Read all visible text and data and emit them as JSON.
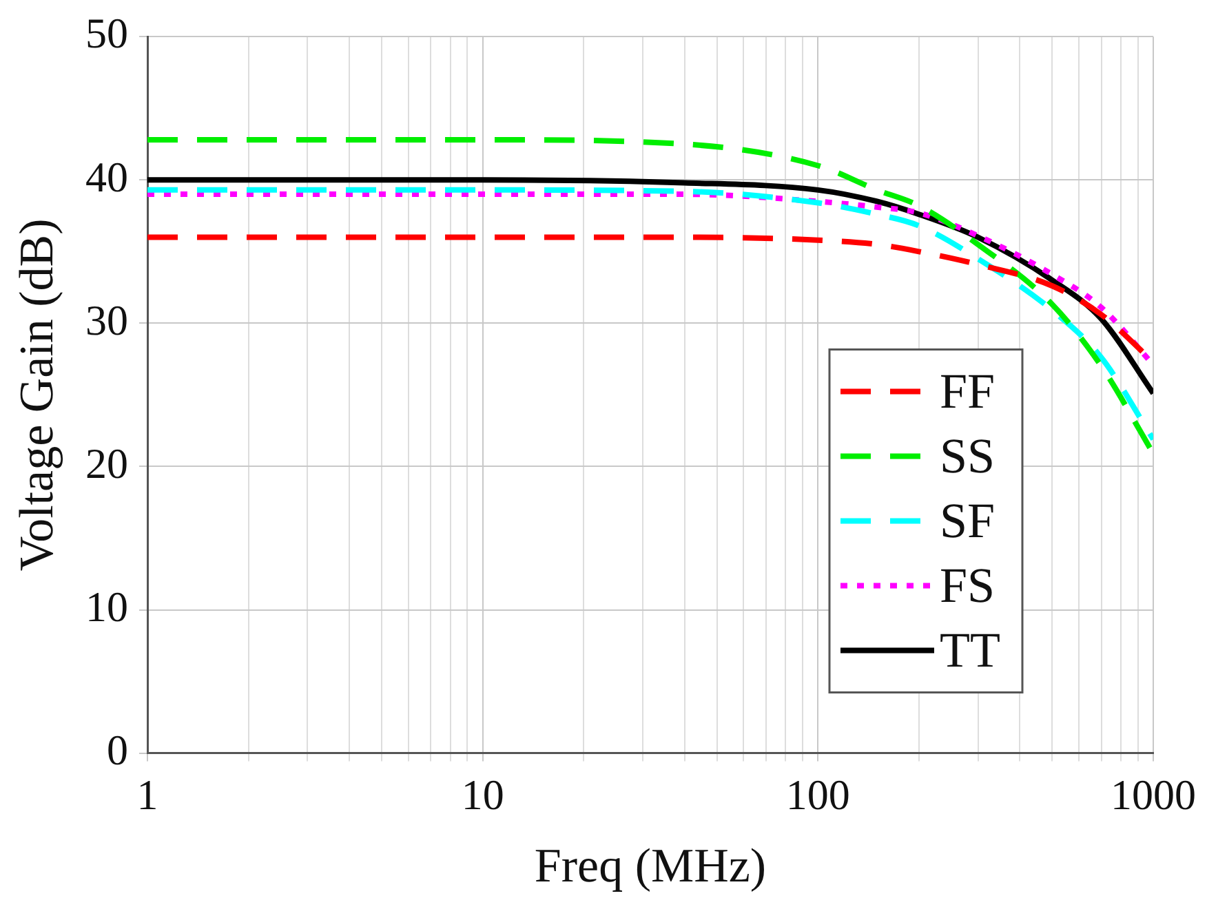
{
  "chart_data": {
    "type": "line",
    "xlabel": "Freq (MHz)",
    "ylabel": "Voltage Gain (dB)",
    "log": "x",
    "grid": true,
    "legend": "bottom right",
    "marker": "none",
    "xlim": [
      1,
      1000
    ],
    "ylim": [
      0,
      50
    ],
    "xticks": [
      1,
      {
        "value": 2,
        "label": null
      },
      {
        "value": 3,
        "label": null
      },
      {
        "value": 4,
        "label": null
      },
      {
        "value": 5,
        "label": null
      },
      {
        "value": 6,
        "label": null
      },
      {
        "value": 7,
        "label": null
      },
      {
        "value": 8,
        "label": null
      },
      {
        "value": 9,
        "label": null
      },
      10,
      {
        "value": 20,
        "label": null
      },
      {
        "value": 30,
        "label": null
      },
      {
        "value": 40,
        "label": null
      },
      {
        "value": 50,
        "label": null
      },
      {
        "value": 60,
        "label": null
      },
      {
        "value": 70,
        "label": null
      },
      {
        "value": 80,
        "label": null
      },
      {
        "value": 90,
        "label": null
      },
      100,
      {
        "value": 200,
        "label": null
      },
      {
        "value": 300,
        "label": null
      },
      {
        "value": 400,
        "label": null
      },
      {
        "value": 500,
        "label": null
      },
      {
        "value": 600,
        "label": null
      },
      {
        "value": 700,
        "label": null
      },
      {
        "value": 800,
        "label": null
      },
      {
        "value": 900,
        "label": null
      },
      1000
    ],
    "yticks": [
      0,
      10,
      20,
      30,
      40,
      50
    ],
    "x": [
      1,
      10,
      40,
      100,
      150,
      200,
      300,
      500,
      700,
      1000
    ],
    "series": [
      {
        "name": "FF",
        "color": "#ff0000",
        "line_style": "dashed",
        "values": [
          36.0,
          36.0,
          36.0,
          35.8,
          35.5,
          35.0,
          34.1,
          32.6,
          30.6,
          27.3
        ]
      },
      {
        "name": "SS",
        "color": "#00ee00",
        "line_style": "dashed",
        "values": [
          42.8,
          42.8,
          42.5,
          41.0,
          39.3,
          38.2,
          35.5,
          31.3,
          27.0,
          20.9
        ]
      },
      {
        "name": "SF",
        "color": "#00ffff",
        "line_style": "dashed",
        "values": [
          39.3,
          39.3,
          39.2,
          38.4,
          37.6,
          36.8,
          34.5,
          30.9,
          27.6,
          21.9
        ]
      },
      {
        "name": "FS",
        "color": "#ff00ff",
        "line_style": "dotted",
        "values": [
          39.0,
          39.0,
          39.0,
          38.5,
          38.1,
          37.7,
          36.1,
          33.4,
          31.1,
          27.1
        ]
      },
      {
        "name": "TT",
        "color": "#000000",
        "line_style": "solid",
        "values": [
          40.0,
          40.0,
          39.8,
          39.3,
          38.5,
          37.6,
          36.0,
          33.0,
          30.3,
          25.1
        ]
      }
    ]
  }
}
